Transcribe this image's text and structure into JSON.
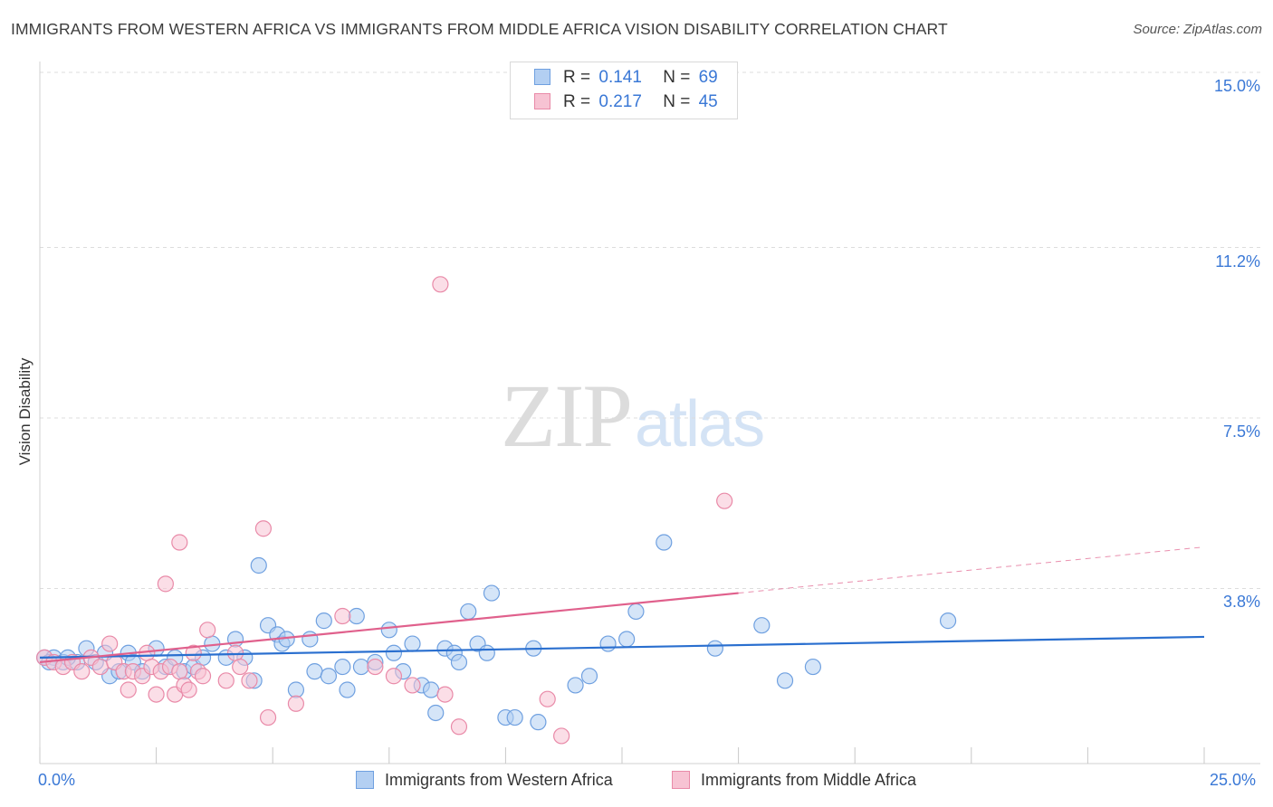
{
  "title": "IMMIGRANTS FROM WESTERN AFRICA VS IMMIGRANTS FROM MIDDLE AFRICA VISION DISABILITY CORRELATION CHART",
  "source": "Source: ZipAtlas.com",
  "watermark": {
    "zip": "ZIP",
    "atlas": "atlas"
  },
  "legend": {
    "rows": [
      {
        "r_label": "R =",
        "r_value": "0.141",
        "n_label": "N =",
        "n_value": "69"
      },
      {
        "r_label": "R =",
        "r_value": "0.217",
        "n_label": "N =",
        "n_value": "45"
      }
    ]
  },
  "colors": {
    "blue_fill": "#b3cff2",
    "blue_stroke": "#6fa0e0",
    "blue_line": "#2a6fcf",
    "pink_fill": "#f7c3d3",
    "pink_stroke": "#e98aa8",
    "pink_line": "#e0608c",
    "grid": "#dddddd",
    "tick_text": "#3a78d6"
  },
  "chart_data": {
    "type": "scatter",
    "title": "IMMIGRANTS FROM WESTERN AFRICA VS IMMIGRANTS FROM MIDDLE AFRICA VISION DISABILITY CORRELATION CHART",
    "xlabel": "",
    "ylabel": "Vision Disability",
    "xlim": [
      0,
      25
    ],
    "ylim": [
      0,
      15
    ],
    "x_tick_labels": [
      "0.0%",
      "25.0%"
    ],
    "y_ticks": [
      3.8,
      7.5,
      11.2,
      15.0
    ],
    "y_tick_labels": [
      "3.8%",
      "7.5%",
      "11.2%",
      "15.0%"
    ],
    "grid": true,
    "series": [
      {
        "name": "Immigrants from Western Africa",
        "color": "blue",
        "trend": {
          "x": [
            0,
            25
          ],
          "y": [
            2.3,
            2.75
          ]
        },
        "points": [
          [
            0.1,
            2.3
          ],
          [
            0.3,
            2.3
          ],
          [
            0.5,
            2.2
          ],
          [
            0.8,
            2.2
          ],
          [
            1.0,
            2.5
          ],
          [
            1.2,
            2.2
          ],
          [
            1.4,
            2.4
          ],
          [
            1.5,
            1.9
          ],
          [
            1.7,
            2.0
          ],
          [
            1.9,
            2.4
          ],
          [
            2.0,
            2.2
          ],
          [
            2.2,
            2.0
          ],
          [
            2.5,
            2.5
          ],
          [
            2.7,
            2.1
          ],
          [
            2.9,
            2.3
          ],
          [
            3.1,
            2.0
          ],
          [
            3.3,
            2.1
          ],
          [
            3.5,
            2.3
          ],
          [
            3.7,
            2.6
          ],
          [
            4.0,
            2.3
          ],
          [
            4.2,
            2.7
          ],
          [
            4.4,
            2.3
          ],
          [
            4.6,
            1.8
          ],
          [
            4.7,
            4.3
          ],
          [
            4.9,
            3.0
          ],
          [
            5.1,
            2.8
          ],
          [
            5.2,
            2.6
          ],
          [
            5.3,
            2.7
          ],
          [
            5.5,
            1.6
          ],
          [
            5.8,
            2.7
          ],
          [
            5.9,
            2.0
          ],
          [
            6.1,
            3.1
          ],
          [
            6.2,
            1.9
          ],
          [
            6.5,
            2.1
          ],
          [
            6.6,
            1.6
          ],
          [
            6.8,
            3.2
          ],
          [
            6.9,
            2.1
          ],
          [
            7.2,
            2.2
          ],
          [
            7.5,
            2.9
          ],
          [
            7.6,
            2.4
          ],
          [
            7.8,
            2.0
          ],
          [
            8.0,
            2.6
          ],
          [
            8.2,
            1.7
          ],
          [
            8.4,
            1.6
          ],
          [
            8.5,
            1.1
          ],
          [
            8.7,
            2.5
          ],
          [
            8.9,
            2.4
          ],
          [
            9.0,
            2.2
          ],
          [
            9.2,
            3.3
          ],
          [
            9.4,
            2.6
          ],
          [
            9.6,
            2.4
          ],
          [
            9.7,
            3.7
          ],
          [
            10.0,
            1.0
          ],
          [
            10.2,
            1.0
          ],
          [
            10.6,
            2.5
          ],
          [
            10.7,
            0.9
          ],
          [
            11.5,
            1.7
          ],
          [
            11.8,
            1.9
          ],
          [
            12.2,
            2.6
          ],
          [
            12.6,
            2.7
          ],
          [
            12.8,
            3.3
          ],
          [
            13.4,
            4.8
          ],
          [
            14.5,
            2.5
          ],
          [
            15.5,
            3.0
          ],
          [
            16.0,
            1.8
          ],
          [
            16.6,
            2.1
          ],
          [
            19.5,
            3.1
          ],
          [
            0.2,
            2.2
          ],
          [
            0.6,
            2.3
          ]
        ]
      },
      {
        "name": "Immigrants from Middle Africa",
        "color": "pink",
        "trend": {
          "x": [
            0,
            15
          ],
          "y": [
            2.2,
            3.7
          ]
        },
        "trend_extension": {
          "x": [
            15,
            25
          ],
          "y": [
            3.7,
            4.7
          ]
        },
        "points": [
          [
            0.1,
            2.3
          ],
          [
            0.3,
            2.2
          ],
          [
            0.5,
            2.1
          ],
          [
            0.7,
            2.2
          ],
          [
            0.9,
            2.0
          ],
          [
            1.1,
            2.3
          ],
          [
            1.3,
            2.1
          ],
          [
            1.5,
            2.6
          ],
          [
            1.6,
            2.2
          ],
          [
            1.8,
            2.0
          ],
          [
            1.9,
            1.6
          ],
          [
            2.0,
            2.0
          ],
          [
            2.2,
            1.9
          ],
          [
            2.3,
            2.4
          ],
          [
            2.4,
            2.1
          ],
          [
            2.5,
            1.5
          ],
          [
            2.6,
            2.0
          ],
          [
            2.8,
            2.1
          ],
          [
            2.9,
            1.5
          ],
          [
            3.0,
            2.0
          ],
          [
            3.1,
            1.7
          ],
          [
            3.2,
            1.6
          ],
          [
            3.3,
            2.4
          ],
          [
            3.4,
            2.0
          ],
          [
            3.5,
            1.9
          ],
          [
            3.6,
            2.9
          ],
          [
            4.0,
            1.8
          ],
          [
            4.2,
            2.4
          ],
          [
            4.3,
            2.1
          ],
          [
            4.5,
            1.8
          ],
          [
            4.8,
            5.1
          ],
          [
            4.9,
            1.0
          ],
          [
            5.5,
            1.3
          ],
          [
            6.5,
            3.2
          ],
          [
            7.2,
            2.1
          ],
          [
            7.6,
            1.9
          ],
          [
            8.0,
            1.7
          ],
          [
            8.6,
            10.4
          ],
          [
            8.7,
            1.5
          ],
          [
            9.0,
            0.8
          ],
          [
            10.9,
            1.4
          ],
          [
            11.2,
            0.6
          ],
          [
            14.7,
            5.7
          ],
          [
            2.7,
            3.9
          ],
          [
            3.0,
            4.8
          ]
        ]
      }
    ]
  },
  "bottom_legend": [
    {
      "label": "Immigrants from Western Africa"
    },
    {
      "label": "Immigrants from Middle Africa"
    }
  ]
}
